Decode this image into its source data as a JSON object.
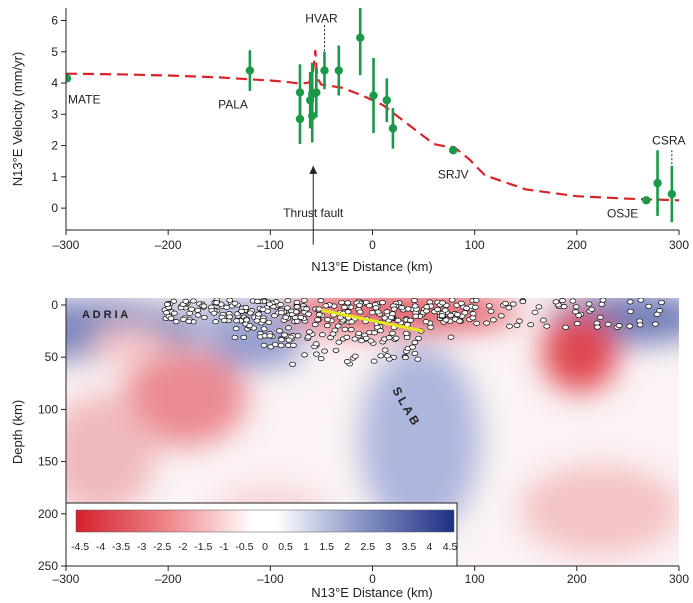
{
  "chart_data": [
    {
      "type": "scatter",
      "xlabel": "N13°E Distance (km)",
      "ylabel": "N13°E Velocity (mm/yr)",
      "xlim": [
        -300,
        300
      ],
      "ylim": [
        -0.7,
        6.4
      ],
      "x_ticks": [
        -300,
        -200,
        -100,
        0,
        100,
        200,
        300
      ],
      "x_tick_labels": [
        "–300",
        "–200",
        "–100",
        "0",
        "100",
        "200",
        "300"
      ],
      "y_ticks": [
        0,
        1,
        2,
        3,
        4,
        5,
        6
      ],
      "y_tick_labels": [
        "0",
        "1",
        "2",
        "3",
        "4",
        "5",
        "6"
      ],
      "grid": false,
      "series": [
        {
          "kind": "points-with-error-bars",
          "color": "#1a9a49",
          "points": [
            {
              "x": -299,
              "y": 4.15,
              "err": 0.05
            },
            {
              "x": -120,
              "y": 4.4,
              "err": 0.65
            },
            {
              "x": -71,
              "y": 3.7,
              "err": 0.9
            },
            {
              "x": -71,
              "y": 2.85,
              "err": 0.8
            },
            {
              "x": -61,
              "y": 3.45,
              "err": 0.9
            },
            {
              "x": -59,
              "y": 2.95,
              "err": 0.85
            },
            {
              "x": -59,
              "y": 3.65,
              "err": 1.0
            },
            {
              "x": -55,
              "y": 3.7,
              "err": 0.8
            },
            {
              "x": -47,
              "y": 4.4,
              "err": 0.6
            },
            {
              "x": -33,
              "y": 4.4,
              "err": 0.8
            },
            {
              "x": -12,
              "y": 5.45,
              "err": 1.2
            },
            {
              "x": 1,
              "y": 3.6,
              "err": 1.2
            },
            {
              "x": 14,
              "y": 3.45,
              "err": 0.7
            },
            {
              "x": 20,
              "y": 2.55,
              "err": 0.65
            },
            {
              "x": 79,
              "y": 1.85,
              "err": 0.1
            },
            {
              "x": 268,
              "y": 0.25,
              "err": 0.1
            },
            {
              "x": 279,
              "y": 0.8,
              "err": 1.05
            },
            {
              "x": 293,
              "y": 0.45,
              "err": 0.9
            }
          ]
        },
        {
          "kind": "model-curve",
          "color": "#d8232a",
          "style": "dashed",
          "x": [
            -300,
            -250,
            -200,
            -150,
            -120,
            -100,
            -85,
            -70,
            -62,
            -58,
            -56,
            -54,
            -50,
            -30,
            -10,
            10,
            30,
            50,
            60,
            70,
            80,
            95,
            110,
            150,
            200,
            250,
            300
          ],
          "y": [
            4.3,
            4.28,
            4.24,
            4.18,
            4.12,
            4.08,
            4.04,
            3.98,
            4.02,
            4.4,
            5.05,
            4.15,
            3.95,
            3.85,
            3.6,
            3.3,
            2.8,
            2.3,
            2.05,
            1.98,
            1.95,
            1.55,
            1.05,
            0.6,
            0.38,
            0.3,
            0.25
          ]
        }
      ],
      "annotations": [
        {
          "text": "MATE",
          "x": -300,
          "y": 4.15
        },
        {
          "text": "PALA",
          "x": -120,
          "y": 4.4
        },
        {
          "text": "HVAR",
          "x": -47,
          "y": 4.4
        },
        {
          "text": "SRJV",
          "x": 79,
          "y": 1.85
        },
        {
          "text": "CSRA",
          "x": 293,
          "y": 0.45
        },
        {
          "text": "OSJE",
          "x": 268,
          "y": 0.25
        },
        {
          "text": "Thrust fault",
          "x": -58,
          "y": 0
        }
      ]
    },
    {
      "type": "heatmap",
      "xlabel": "N13°E Distance (km)",
      "ylabel": "Depth (km)",
      "xlim": [
        -300,
        300
      ],
      "ylim": [
        250,
        0
      ],
      "x_ticks": [
        -300,
        -200,
        -100,
        0,
        100,
        200,
        300
      ],
      "x_tick_labels": [
        "–300",
        "–200",
        "–100",
        "0",
        "100",
        "200",
        "300"
      ],
      "y_ticks": [
        0,
        50,
        100,
        150,
        200,
        250
      ],
      "y_tick_labels": [
        "0",
        "50",
        "100",
        "150",
        "200",
        "250"
      ],
      "colorbar": {
        "placement": "bottom-left",
        "min": -4.5,
        "max": 4.5,
        "low_color": "#d4202c",
        "mid_color": "#ffffff",
        "high_color": "#1d2f82",
        "tick_labels": [
          "-4.5",
          "-4",
          "-3.5",
          "-3",
          "-2.5",
          "-2",
          "-1.5",
          "-1",
          "-0.5",
          "0",
          "0.5",
          "1",
          "1.5",
          "2",
          "2.5",
          "3",
          "3.5",
          "4",
          "4.5"
        ]
      },
      "text_labels": [
        {
          "text": "A D R I A",
          "x": -230,
          "y": 10
        },
        {
          "text": "S L A B",
          "x": 30,
          "y": 120
        }
      ],
      "fault_line": {
        "color": "#e3e81c",
        "x": [
          -50,
          50
        ],
        "y": [
          5,
          25
        ]
      }
    }
  ]
}
